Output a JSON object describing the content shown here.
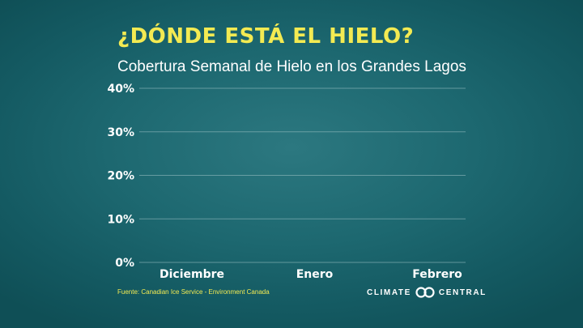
{
  "chart_data": {
    "type": "line",
    "title": "¿DÓNDE ESTÁ EL HIELO?",
    "subtitle": "Cobertura Semanal de Hielo en los Grandes Lagos",
    "xlabel": "",
    "ylabel": "",
    "categories": [
      "Diciembre",
      "Enero",
      "Febrero"
    ],
    "y_ticks": [
      "0%",
      "10%",
      "20%",
      "30%",
      "40%"
    ],
    "y_tick_values": [
      0,
      10,
      20,
      30,
      40
    ],
    "ylim": [
      0,
      40
    ],
    "series": [],
    "grid": true,
    "colors": {
      "title": "#f3ea52",
      "text": "#ffffff",
      "grid": "#9fc3c6"
    }
  },
  "footer": {
    "source": "Fuente: Canadian Ice Service - Environment Canada",
    "logo_left": "CLIMATE",
    "logo_right": "CENTRAL",
    "logo_icon": "climate-central-rings-icon"
  }
}
